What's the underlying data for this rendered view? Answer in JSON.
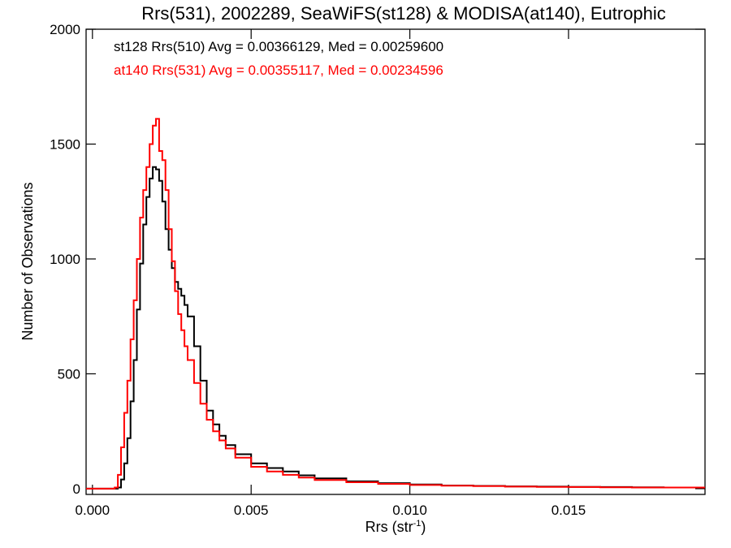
{
  "chart_data": {
    "type": "line",
    "title": "Rrs(531), 2002289, SeaWiFS(st128) & MODISA(at140), Eutrophic",
    "xlabel": "Rrs (str",
    "xlabel_sup": "-1",
    "xlabel_close": ")",
    "ylabel": "Number of Observations",
    "xlim": [
      -0.0002,
      0.0193
    ],
    "ylim": [
      -25,
      2000
    ],
    "x_ticks": [
      0.0,
      0.005,
      0.01,
      0.015
    ],
    "x_tick_labels": [
      "0.000",
      "0.005",
      "0.010",
      "0.015"
    ],
    "y_ticks": [
      0,
      500,
      1000,
      1500,
      2000
    ],
    "y_tick_labels": [
      "0",
      "500",
      "1000",
      "1500",
      "2000"
    ],
    "grid": false,
    "legend_position": "top-left",
    "step": true,
    "series": [
      {
        "name": "st128 Rrs(510) Avg = 0.00366129, Med = 0.00259600",
        "color": "#000000",
        "x": [
          -0.0002,
          0.0008,
          0.0009,
          0.001,
          0.0011,
          0.0012,
          0.0013,
          0.0014,
          0.0015,
          0.0016,
          0.0017,
          0.0018,
          0.0019,
          0.002,
          0.0021,
          0.0022,
          0.0023,
          0.0024,
          0.0025,
          0.0026,
          0.0027,
          0.0028,
          0.0029,
          0.003,
          0.0032,
          0.0034,
          0.0036,
          0.0038,
          0.004,
          0.0042,
          0.0045,
          0.005,
          0.0055,
          0.006,
          0.0065,
          0.007,
          0.008,
          0.009,
          0.01,
          0.011,
          0.012,
          0.013,
          0.014,
          0.015,
          0.016,
          0.017,
          0.018,
          0.0193
        ],
        "y": [
          0,
          5,
          40,
          110,
          220,
          380,
          560,
          780,
          980,
          1150,
          1270,
          1350,
          1400,
          1390,
          1340,
          1250,
          1130,
          1040,
          960,
          900,
          870,
          840,
          800,
          750,
          620,
          470,
          340,
          280,
          230,
          190,
          150,
          110,
          90,
          75,
          58,
          45,
          32,
          24,
          18,
          14,
          12,
          10,
          9,
          8,
          7,
          6,
          5,
          5
        ]
      },
      {
        "name": "at140 Rrs(531) Avg = 0.00355117, Med = 0.00234596",
        "color": "#ff0000",
        "x": [
          -0.0002,
          0.0007,
          0.0008,
          0.0009,
          0.001,
          0.0011,
          0.0012,
          0.0013,
          0.0014,
          0.0015,
          0.0016,
          0.0017,
          0.0018,
          0.0019,
          0.002,
          0.0021,
          0.0022,
          0.0023,
          0.0024,
          0.0025,
          0.0026,
          0.0027,
          0.0028,
          0.0029,
          0.003,
          0.0032,
          0.0034,
          0.0036,
          0.0038,
          0.004,
          0.0042,
          0.0045,
          0.005,
          0.0055,
          0.006,
          0.0065,
          0.007,
          0.008,
          0.009,
          0.01,
          0.011,
          0.012,
          0.013,
          0.014,
          0.015,
          0.016,
          0.017,
          0.018,
          0.0193
        ],
        "y": [
          0,
          5,
          60,
          180,
          330,
          470,
          650,
          820,
          1000,
          1180,
          1300,
          1400,
          1500,
          1580,
          1610,
          1470,
          1430,
          1300,
          1130,
          990,
          860,
          760,
          690,
          620,
          560,
          460,
          370,
          300,
          250,
          210,
          175,
          135,
          95,
          75,
          60,
          48,
          38,
          28,
          21,
          16,
          13,
          11,
          9,
          8,
          7,
          6,
          5,
          5,
          5
        ]
      }
    ]
  }
}
